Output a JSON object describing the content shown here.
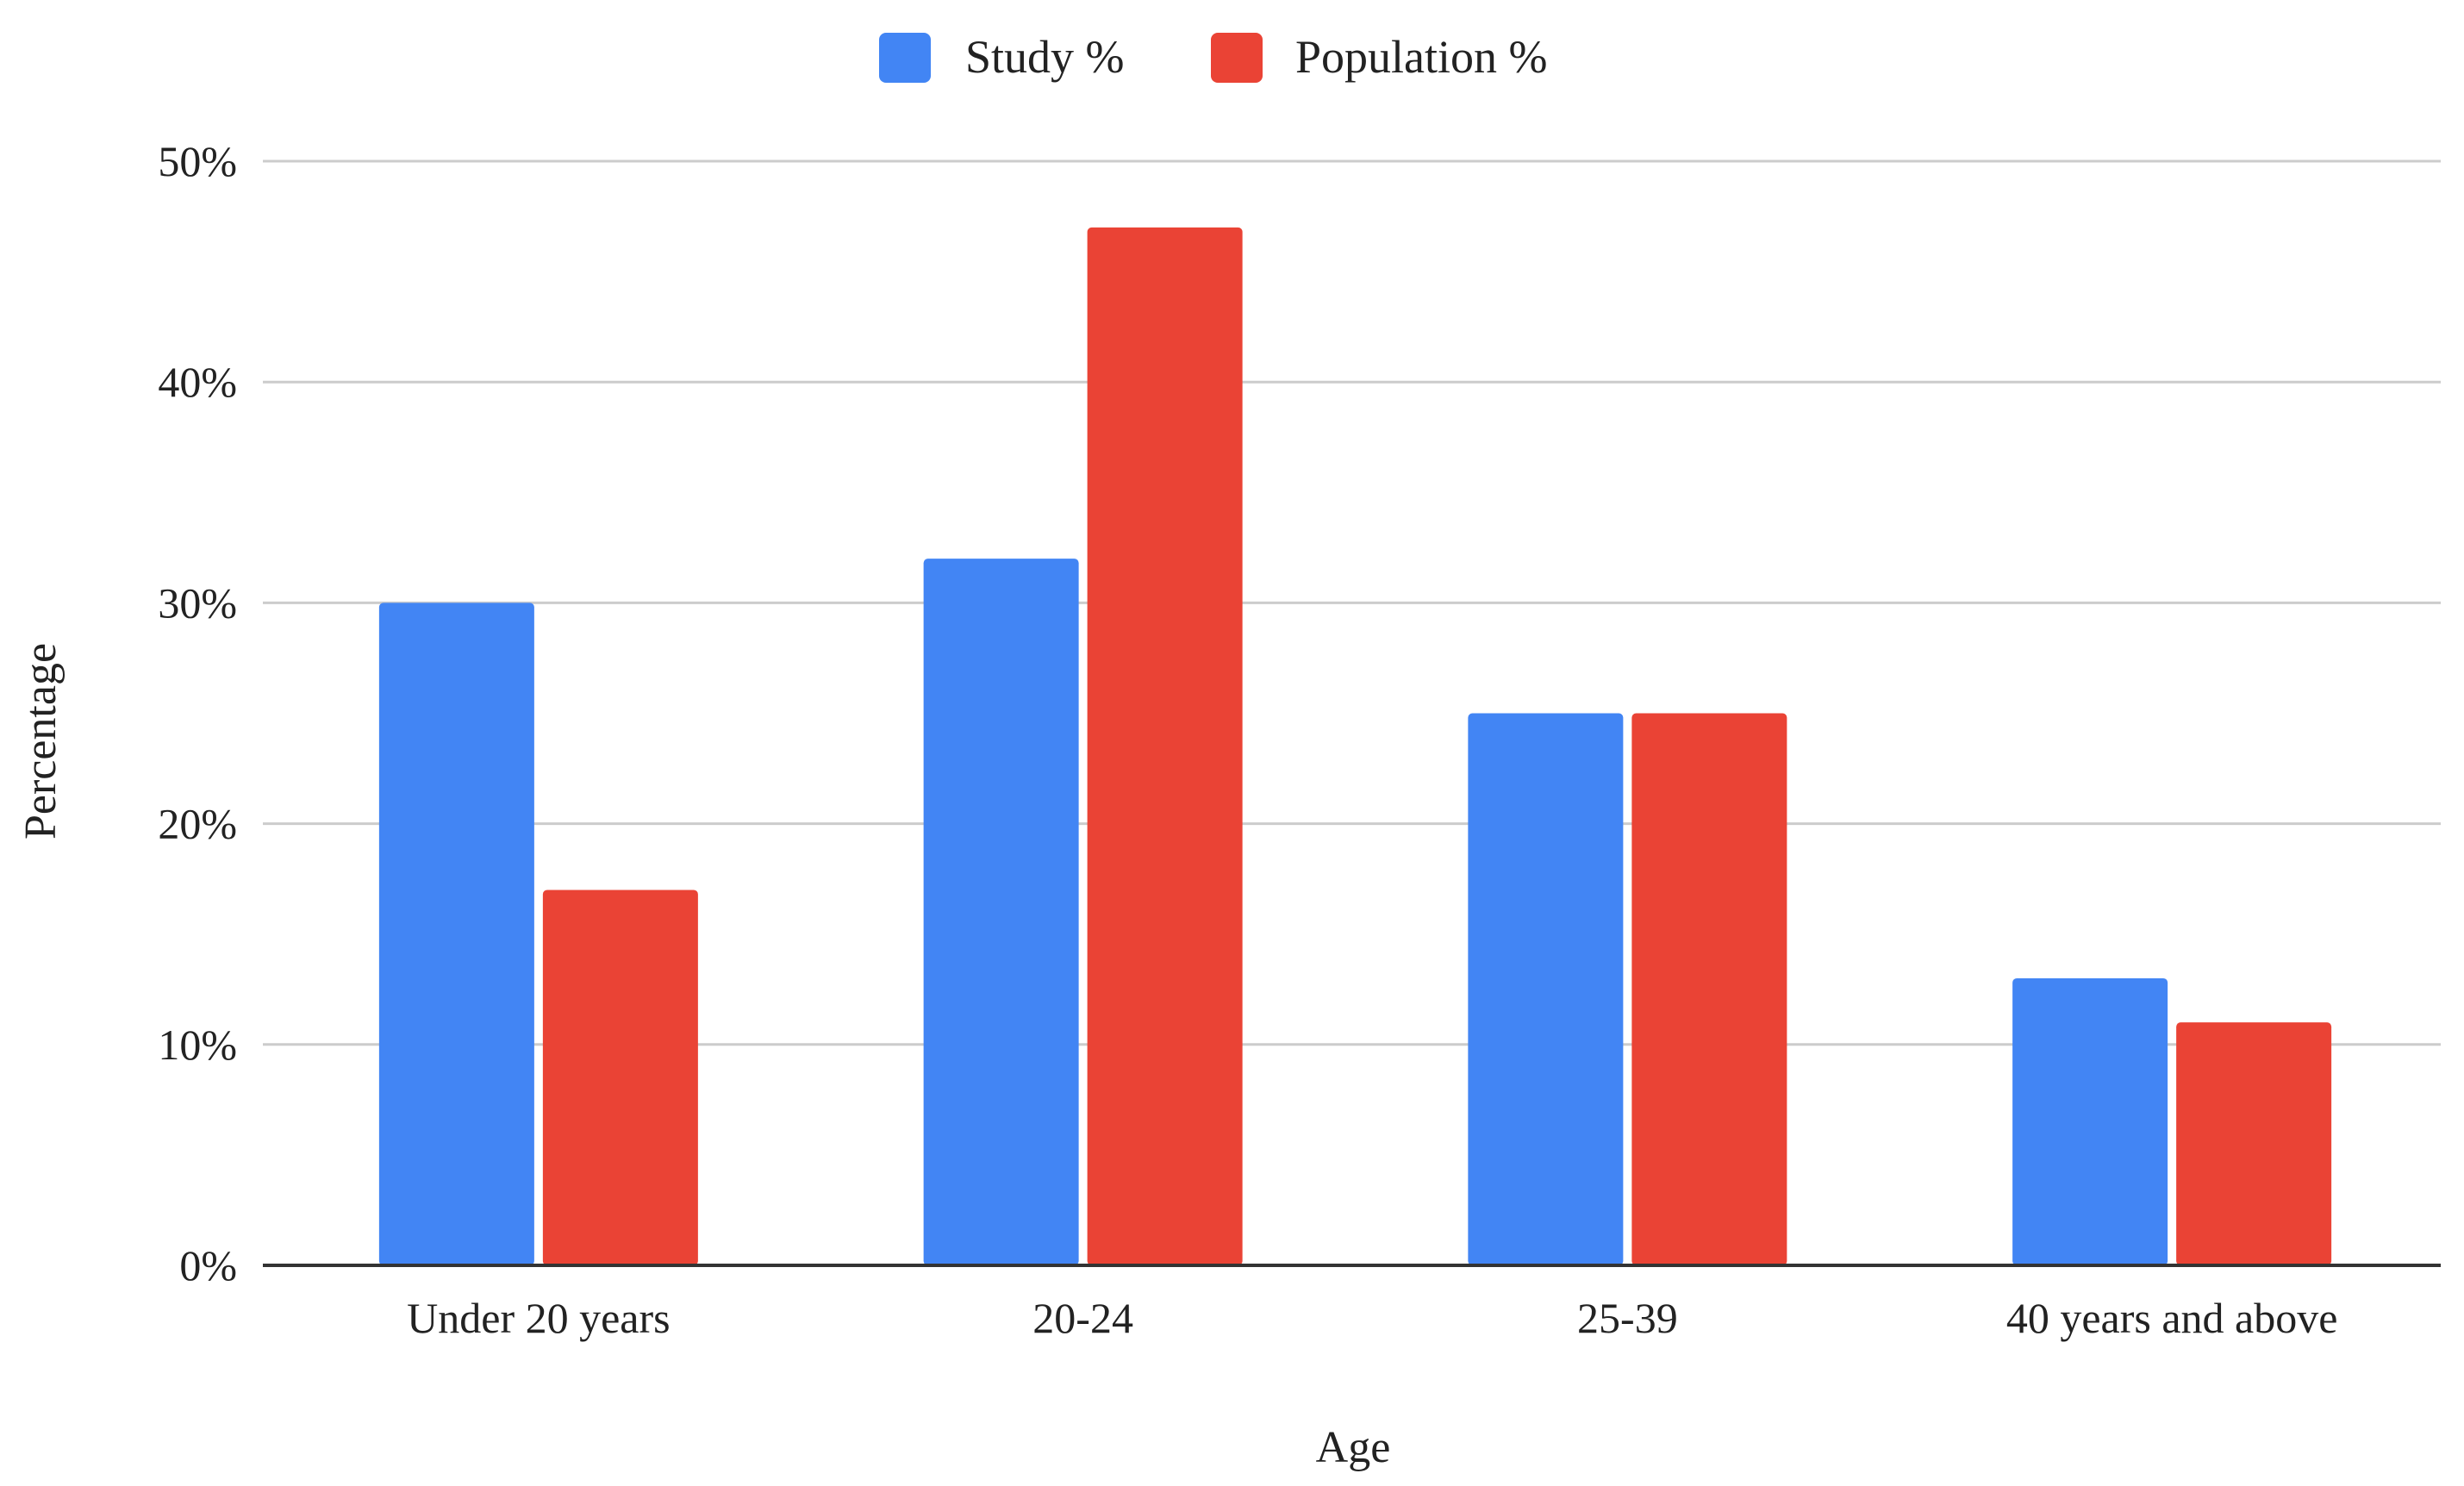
{
  "chart_data": {
    "type": "bar",
    "title": "",
    "xlabel": "Age",
    "ylabel": "Percentage",
    "categories": [
      "Under 20 years",
      "20-24",
      "25-39",
      "40 years and above"
    ],
    "series": [
      {
        "name": "Study %",
        "color": "#4285F4",
        "values": [
          30,
          32,
          25,
          13
        ]
      },
      {
        "name": "Population %",
        "color": "#EA4335",
        "values": [
          17,
          47,
          25,
          11
        ]
      }
    ],
    "ylim": [
      0,
      50
    ],
    "yticks": [
      0,
      10,
      20,
      30,
      40,
      50
    ],
    "ytick_labels": [
      "0%",
      "10%",
      "20%",
      "30%",
      "40%",
      "50%"
    ],
    "grid": true,
    "legend_position": "top-center"
  }
}
